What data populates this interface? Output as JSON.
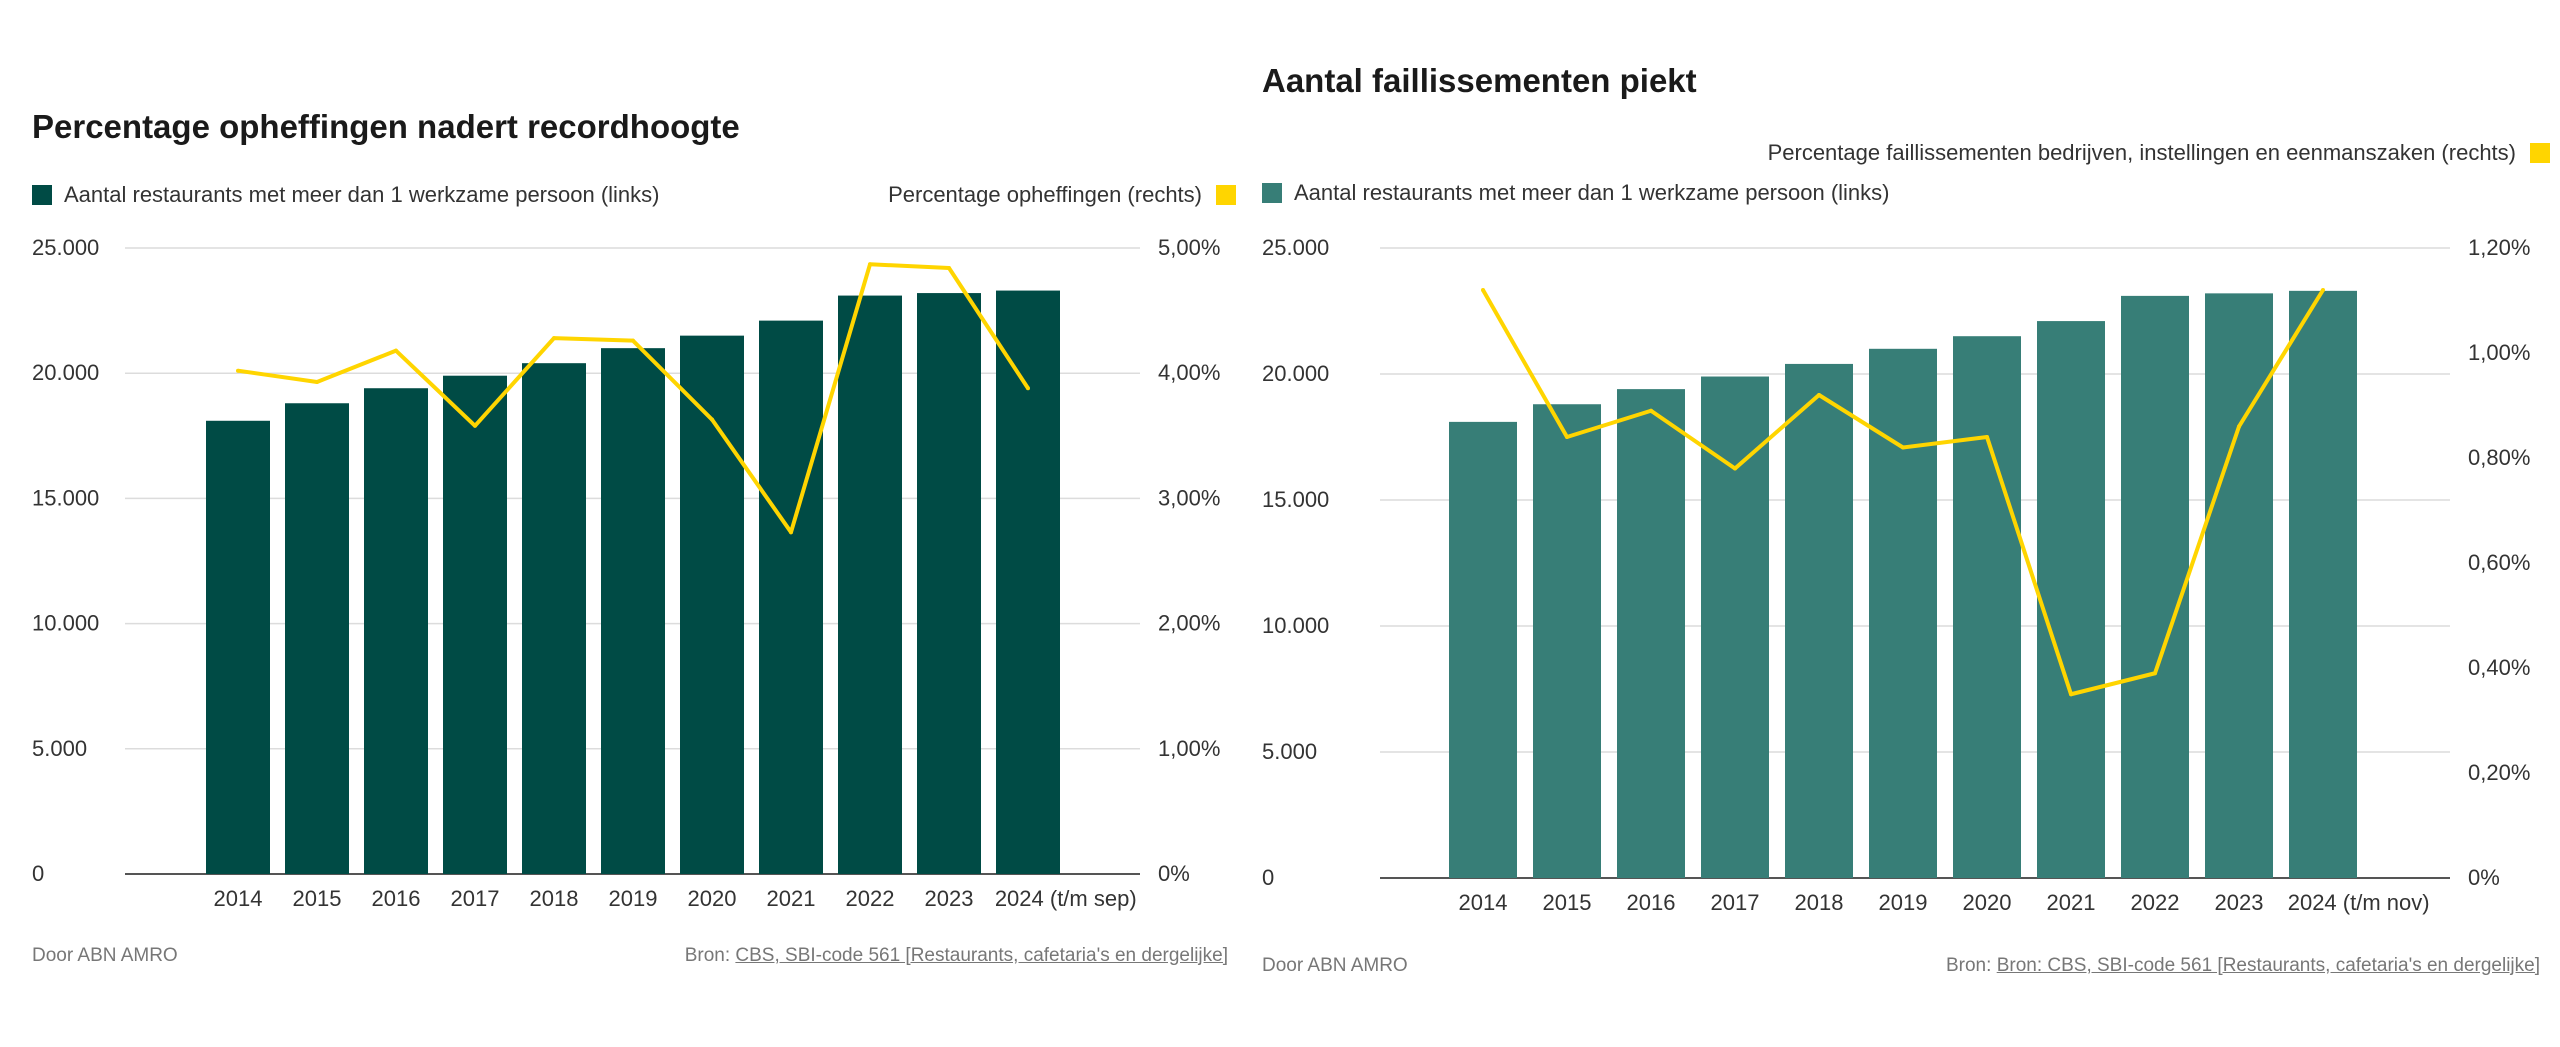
{
  "chart_data": [
    {
      "type": "bar",
      "title": "Percentage opheffingen nadert recordhoogte",
      "categories": [
        "2014",
        "2015",
        "2016",
        "2017",
        "2018",
        "2019",
        "2020",
        "2021",
        "2022",
        "2023",
        "2024 (t/m sep)"
      ],
      "series": [
        {
          "name": "Aantal restaurants met meer dan 1 werkzame persoon (links)",
          "type": "bar",
          "axis": "left",
          "color": "#004b45",
          "values": [
            18100,
            18800,
            19400,
            19900,
            20400,
            21000,
            21500,
            22100,
            23100,
            23200,
            23300
          ]
        },
        {
          "name": "Percentage opheffingen (rechts)",
          "type": "line",
          "axis": "right",
          "color": "#ffd500",
          "values": [
            4.02,
            3.93,
            4.18,
            3.58,
            4.28,
            4.26,
            3.63,
            2.73,
            4.87,
            4.84,
            3.88
          ]
        }
      ],
      "y_left": {
        "ylim": [
          0,
          25000
        ],
        "ticks": [
          "0",
          "5.000",
          "10.000",
          "15.000",
          "20.000",
          "25.000"
        ]
      },
      "y_right": {
        "ylim": [
          0,
          5
        ],
        "ticks": [
          "0%",
          "1,00%",
          "2,00%",
          "3,00%",
          "4,00%",
          "5,00%"
        ]
      },
      "grid": true,
      "footer_left": "Door ABN AMRO",
      "footer_source_prefix": "Bron:",
      "footer_source_link": "CBS, SBI-code 561 [Restaurants, cafetaria's en dergelijke]"
    },
    {
      "type": "bar",
      "title": "Aantal faillissementen piekt",
      "categories": [
        "2014",
        "2015",
        "2016",
        "2017",
        "2018",
        "2019",
        "2020",
        "2021",
        "2022",
        "2023",
        "2024 (t/m nov)"
      ],
      "series": [
        {
          "name": "Aantal restaurants met meer dan 1 werkzame persoon (links)",
          "type": "bar",
          "axis": "left",
          "color": "#377e77",
          "values": [
            18100,
            18800,
            19400,
            19900,
            20400,
            21000,
            21500,
            22100,
            23100,
            23200,
            23300
          ]
        },
        {
          "name": "Percentage faillissementen bedrijven, instellingen en eenmanszaken (rechts)",
          "type": "line",
          "axis": "right",
          "color": "#ffd500",
          "values": [
            1.12,
            0.84,
            0.89,
            0.78,
            0.92,
            0.82,
            0.84,
            0.35,
            0.39,
            0.86,
            1.12
          ]
        }
      ],
      "y_left": {
        "ylim": [
          0,
          25000
        ],
        "ticks": [
          "0",
          "5.000",
          "10.000",
          "15.000",
          "20.000",
          "25.000"
        ]
      },
      "y_right": {
        "ylim": [
          0,
          1.2
        ],
        "ticks": [
          "0%",
          "0,20%",
          "0,40%",
          "0,60%",
          "0,80%",
          "1,00%",
          "1,20%"
        ]
      },
      "grid": true,
      "footer_left": "Door ABN AMRO",
      "footer_source_prefix": "Bron:",
      "footer_source_link": "Bron: CBS, SBI-code 561 [Restaurants, cafetaria's en dergelijke]"
    }
  ]
}
